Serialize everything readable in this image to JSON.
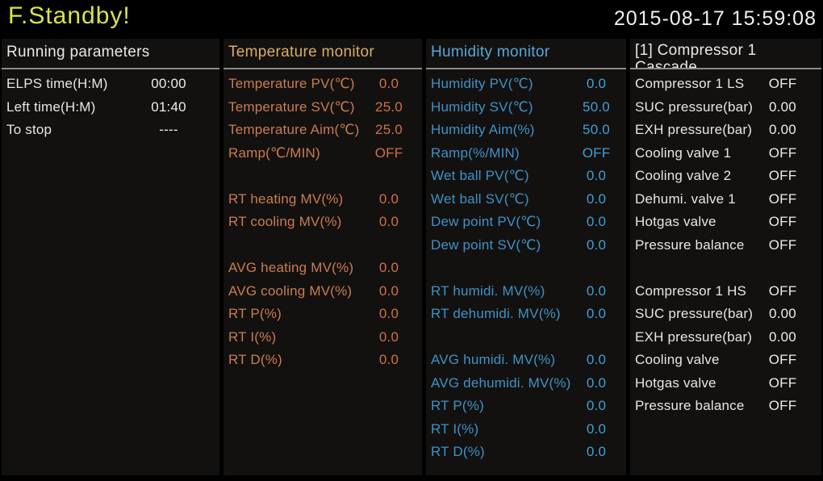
{
  "window": {
    "status_title": "F.Standby!",
    "datetime": "2015-08-17 15:59:08"
  },
  "colors": {
    "background": "#000000",
    "panel_background": "#131110",
    "status_text_green": "#dce24c",
    "white_text": "#e8e8e8",
    "temperature_header": "#d8ad66",
    "temperature_text": "#c97c50",
    "humidity_header": "#57a7d8",
    "humidity_text": "#3e92c6",
    "header_underline": "#8b8b8b"
  },
  "panels": {
    "running": {
      "title": "Running parameters",
      "rows": [
        {
          "label": "ELPS time(H:M)",
          "value": "00:00"
        },
        {
          "label": "Left time(H:M)",
          "value": "01:40"
        },
        {
          "label": "To stop",
          "value": "----"
        }
      ]
    },
    "temperature": {
      "title": "Temperature monitor",
      "rows": [
        {
          "label": "Temperature PV(℃)",
          "value": "0.0"
        },
        {
          "label": "Temperature SV(℃)",
          "value": "25.0"
        },
        {
          "label": "Temperature Aim(℃)",
          "value": "25.0"
        },
        {
          "label": "Ramp(℃/MIN)",
          "value": "OFF"
        },
        {
          "label": "",
          "value": ""
        },
        {
          "label": "RT heating MV(%)",
          "value": "0.0"
        },
        {
          "label": "RT cooling MV(%)",
          "value": "0.0"
        },
        {
          "label": "",
          "value": ""
        },
        {
          "label": "AVG heating MV(%)",
          "value": "0.0"
        },
        {
          "label": "AVG cooling MV(%)",
          "value": "0.0"
        },
        {
          "label": "RT P(%)",
          "value": "0.0"
        },
        {
          "label": "RT I(%)",
          "value": "0.0"
        },
        {
          "label": "RT D(%)",
          "value": "0.0"
        }
      ]
    },
    "humidity": {
      "title": "Humidity monitor",
      "rows": [
        {
          "label": "Humidity PV(℃)",
          "value": "0.0"
        },
        {
          "label": "Humidity SV(℃)",
          "value": "50.0"
        },
        {
          "label": "Humidity Aim(%)",
          "value": "50.0"
        },
        {
          "label": "Ramp(%/MIN)",
          "value": "OFF"
        },
        {
          "label": "Wet ball PV(℃)",
          "value": "0.0"
        },
        {
          "label": "Wet ball SV(℃)",
          "value": "0.0"
        },
        {
          "label": "Dew point PV(℃)",
          "value": "0.0"
        },
        {
          "label": "Dew point SV(℃)",
          "value": "0.0"
        },
        {
          "label": "",
          "value": ""
        },
        {
          "label": "RT humidi. MV(%)",
          "value": "0.0"
        },
        {
          "label": "RT dehumidi. MV(%)",
          "value": "0.0"
        },
        {
          "label": "",
          "value": ""
        },
        {
          "label": "AVG humidi. MV(%)",
          "value": "0.0"
        },
        {
          "label": "AVG dehumidi. MV(%)",
          "value": "0.0"
        },
        {
          "label": "RT P(%)",
          "value": "0.0"
        },
        {
          "label": "RT I(%)",
          "value": "0.0"
        },
        {
          "label": "RT D(%)",
          "value": "0.0"
        }
      ]
    },
    "compressor": {
      "title": "[1] Compressor 1",
      "title_line2": "Cascade",
      "rows": [
        {
          "label": "Compressor 1 LS",
          "value": "OFF"
        },
        {
          "label": "SUC pressure(bar)",
          "value": "0.00"
        },
        {
          "label": "EXH pressure(bar)",
          "value": "0.00"
        },
        {
          "label": "Cooling valve 1",
          "value": "OFF"
        },
        {
          "label": "Cooling valve 2",
          "value": "OFF"
        },
        {
          "label": "Dehumi. valve 1",
          "value": "OFF"
        },
        {
          "label": "Hotgas valve",
          "value": "OFF"
        },
        {
          "label": "Pressure balance",
          "value": "OFF"
        },
        {
          "label": "",
          "value": ""
        },
        {
          "label": "Compressor 1 HS",
          "value": "OFF"
        },
        {
          "label": "SUC pressure(bar)",
          "value": "0.00"
        },
        {
          "label": "EXH pressure(bar)",
          "value": "0.00"
        },
        {
          "label": "Cooling valve",
          "value": "OFF"
        },
        {
          "label": "Hotgas valve",
          "value": "OFF"
        },
        {
          "label": "Pressure balance",
          "value": "OFF"
        }
      ]
    }
  }
}
